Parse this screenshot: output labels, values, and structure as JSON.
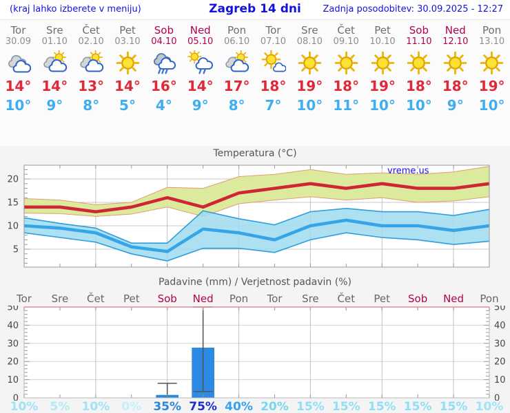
{
  "header": {
    "left": "(kraj lahko izberete v meniju)",
    "title": "Zagreb 14 dni",
    "updated": "Zadnja posodobitev: 30.09.2025 - 12:27"
  },
  "watermark": "vreme.us",
  "days": [
    {
      "name": "Tor",
      "date": "30.09",
      "weekend": false,
      "icon": "cloudy",
      "tmax": 14,
      "tmin": 10,
      "precip_prob": "10%"
    },
    {
      "name": "Sre",
      "date": "01.10",
      "weekend": false,
      "icon": "sun-cloud",
      "tmax": 14,
      "tmin": 9,
      "precip_prob": "5%"
    },
    {
      "name": "Čet",
      "date": "02.10",
      "weekend": false,
      "icon": "sun-cloud",
      "tmax": 13,
      "tmin": 8,
      "precip_prob": "10%"
    },
    {
      "name": "Pet",
      "date": "03.10",
      "weekend": false,
      "icon": "sun",
      "tmax": 14,
      "tmin": 5,
      "precip_prob": "0%"
    },
    {
      "name": "Sob",
      "date": "04.10",
      "weekend": true,
      "icon": "rain",
      "tmax": 16,
      "tmin": 4,
      "precip_prob": "35%"
    },
    {
      "name": "Ned",
      "date": "05.10",
      "weekend": true,
      "icon": "sun-rain",
      "tmax": 14,
      "tmin": 9,
      "precip_prob": "75%"
    },
    {
      "name": "Pon",
      "date": "06.10",
      "weekend": false,
      "icon": "sun-cloud",
      "tmax": 17,
      "tmin": 8,
      "precip_prob": "40%"
    },
    {
      "name": "Tor",
      "date": "07.10",
      "weekend": false,
      "icon": "mostly-sunny",
      "tmax": 18,
      "tmin": 7,
      "precip_prob": "20%"
    },
    {
      "name": "Sre",
      "date": "08.10",
      "weekend": false,
      "icon": "sun",
      "tmax": 19,
      "tmin": 10,
      "precip_prob": "15%"
    },
    {
      "name": "Čet",
      "date": "09.10",
      "weekend": false,
      "icon": "sun",
      "tmax": 18,
      "tmin": 11,
      "precip_prob": "15%"
    },
    {
      "name": "Pet",
      "date": "10.10",
      "weekend": false,
      "icon": "sun",
      "tmax": 19,
      "tmin": 10,
      "precip_prob": "15%"
    },
    {
      "name": "Sob",
      "date": "11.10",
      "weekend": true,
      "icon": "sun",
      "tmax": 18,
      "tmin": 10,
      "precip_prob": "15%"
    },
    {
      "name": "Ned",
      "date": "12.10",
      "weekend": true,
      "icon": "sun",
      "tmax": 18,
      "tmin": 9,
      "precip_prob": "15%"
    },
    {
      "name": "Pon",
      "date": "13.10",
      "weekend": false,
      "icon": "sun",
      "tmax": 19,
      "tmin": 10,
      "precip_prob": "10%"
    }
  ],
  "chart_data": [
    {
      "type": "area",
      "title": "Temperatura (°C)",
      "x_categories": [
        "Tor 30.09",
        "Sre 01.10",
        "Čet 02.10",
        "Pet 03.10",
        "Sob 04.10",
        "Ned 05.10",
        "Pon 06.10",
        "Tor 07.10",
        "Sre 08.10",
        "Čet 09.10",
        "Pet 10.10",
        "Sob 11.10",
        "Ned 12.10",
        "Pon 13.10"
      ],
      "ylim": [
        1,
        23
      ],
      "yticks": [
        5,
        10,
        15,
        20
      ],
      "grid": true,
      "series": [
        {
          "name": "tmax",
          "color": "#cf2535",
          "values": [
            14,
            14,
            13,
            14,
            16,
            14,
            17,
            18,
            19,
            18,
            19,
            18,
            18,
            19
          ]
        },
        {
          "name": "tmax_range_hi",
          "color": "#e59a74",
          "values": [
            15.8,
            15.5,
            14.5,
            15,
            18.2,
            18,
            20.5,
            21,
            22,
            21,
            21.3,
            21,
            21.5,
            22.7
          ]
        },
        {
          "name": "tmax_range_lo",
          "color": "#e59a74",
          "values": [
            12.7,
            12.6,
            12,
            12.5,
            14,
            12,
            14.7,
            15.5,
            16.2,
            15.5,
            16,
            15,
            15.3,
            16.2
          ]
        },
        {
          "name": "tmin",
          "color": "#35a5e8",
          "values": [
            10,
            9.5,
            8.5,
            5.5,
            4.5,
            9.3,
            8.5,
            7,
            10,
            11.2,
            10,
            10,
            9,
            10
          ]
        },
        {
          "name": "tmin_range_hi",
          "color": "#2d9ddf",
          "values": [
            11.7,
            10.5,
            9.5,
            6.3,
            6.3,
            13.2,
            11.5,
            10.2,
            13,
            13.7,
            13,
            13,
            12.2,
            13.5
          ]
        },
        {
          "name": "tmin_range_lo",
          "color": "#2d9ddf",
          "values": [
            8.5,
            7.5,
            6.5,
            4,
            2.5,
            5.2,
            5.2,
            4.3,
            7,
            8.5,
            7.5,
            7,
            6,
            6.7
          ]
        }
      ]
    },
    {
      "type": "bar",
      "title": "Padavine (mm) / Verjetnost padavin (%)",
      "x_categories": [
        "Tor",
        "Sre",
        "Čet",
        "Pet",
        "Sob",
        "Ned",
        "Pon",
        "Tor",
        "Sre",
        "Čet",
        "Pet",
        "Sob",
        "Ned",
        "Pon"
      ],
      "ylim": [
        0,
        50
      ],
      "yticks": [
        0,
        10,
        20,
        30,
        40,
        50
      ],
      "grid": true,
      "bars_mm": [
        0,
        0,
        0,
        0,
        1.5,
        27.5,
        0,
        0,
        0,
        0,
        0,
        0,
        0,
        0
      ],
      "whiskers": [
        {
          "day_index": 4,
          "lo": 0,
          "hi": 8
        },
        {
          "day_index": 5,
          "lo": 3.5,
          "hi": 52
        }
      ],
      "probability_pct": [
        10,
        5,
        10,
        0,
        35,
        75,
        40,
        20,
        15,
        15,
        15,
        15,
        15,
        10
      ]
    }
  ],
  "colors": {
    "header_blue": "#1212dd",
    "weekend_red": "#b3004d",
    "tmax_red": "#e02838",
    "tmin_blue": "#3daef0",
    "bar_blue": "#2b8be4",
    "band_green": "#dcea9d",
    "band_cyan": "#9fdcf0",
    "prob_colors": {
      "0": "#c4f0fa",
      "5": "#b2eaf8",
      "10": "#9fe4f6",
      "15": "#8edff4",
      "20": "#79d6f1",
      "35": "#2c87d8",
      "40": "#36a2ee",
      "75": "#1b2ed0"
    }
  }
}
